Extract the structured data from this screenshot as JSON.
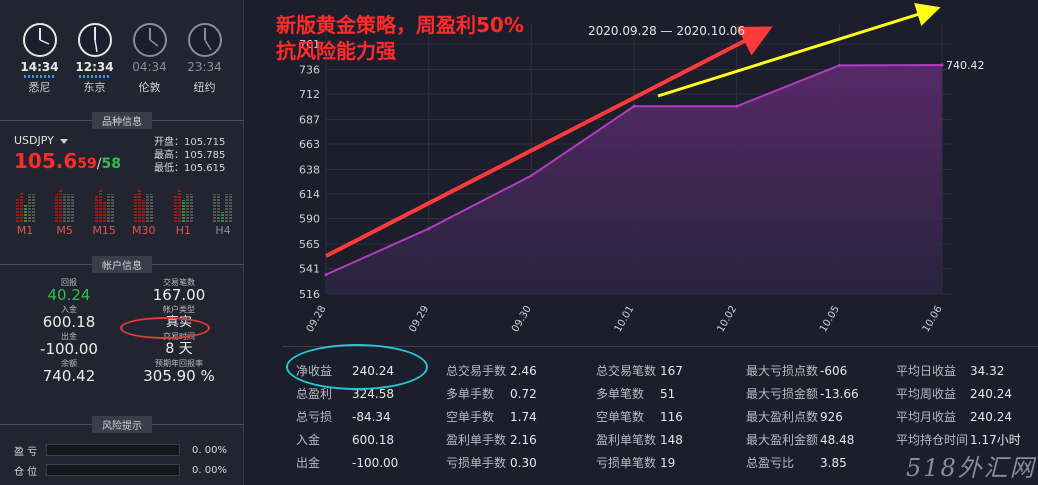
{
  "clocks": [
    {
      "time": "14:34",
      "city": "悉尼",
      "active": true
    },
    {
      "time": "12:34",
      "city": "东京",
      "active": true
    },
    {
      "time": "04:34",
      "city": "伦敦",
      "active": false
    },
    {
      "time": "23:34",
      "city": "纽约",
      "active": false
    }
  ],
  "product": {
    "section_title": "品种信息",
    "symbol": "USDJPY",
    "bid_main": "105.6",
    "bid_small": "59",
    "separator": "/",
    "ask_small": "58",
    "open": "开盘：105.715",
    "high": "最高：105.785",
    "low": "最低：105.615",
    "timeframes": [
      {
        "label": "M1",
        "active": true
      },
      {
        "label": "M5",
        "active": true
      },
      {
        "label": "M15",
        "active": true
      },
      {
        "label": "M30",
        "active": true
      },
      {
        "label": "H1",
        "active": true
      },
      {
        "label": "H4",
        "active": false
      }
    ]
  },
  "account": {
    "section_title": "帐户信息",
    "fields": [
      {
        "label": "回报",
        "value": "40.24",
        "green": true
      },
      {
        "label": "交易笔数",
        "value": "167.00"
      },
      {
        "label": "入金",
        "value": "600.18"
      },
      {
        "label": "帐户类型",
        "value": "真实"
      },
      {
        "label": "出金",
        "value": "-100.00"
      },
      {
        "label": "交易时间",
        "value": "8 天"
      },
      {
        "label": "余额",
        "value": "740.42"
      },
      {
        "label": "预期年回报率",
        "value": "305.90 %"
      }
    ]
  },
  "risk": {
    "section_title": "风险提示",
    "rows": [
      {
        "label": "盈 亏",
        "value": "0. 00%"
      },
      {
        "label": "仓 位",
        "value": "0. 00%"
      }
    ]
  },
  "headline": {
    "line1": "新版黄金策略，周盈利50%",
    "line2": "抗风险能力强"
  },
  "date_range": "2020.09.28 — 2020.10.06",
  "chart_data": {
    "type": "area",
    "categories": [
      "09.28",
      "09.29",
      "09.30",
      "10.01",
      "10.02",
      "10.05",
      "10.06"
    ],
    "values": [
      535,
      580,
      632,
      700,
      700,
      740,
      740.42
    ],
    "yticks": [
      516,
      541,
      565,
      590,
      614,
      638,
      663,
      687,
      712,
      736,
      761
    ],
    "ylim": [
      516,
      761
    ],
    "last_label": "740.42",
    "fill_color": "#5a2a6a",
    "line_color": "#b03cc0",
    "arrow_red": "#ff3a3a",
    "arrow_yellow": "#ffff1a"
  },
  "stats": [
    [
      {
        "k": "净收益",
        "v": "240.24"
      },
      {
        "k": "总盈利",
        "v": "324.58"
      },
      {
        "k": "总亏损",
        "v": "-84.34"
      },
      {
        "k": "入金",
        "v": "600.18"
      },
      {
        "k": "出金",
        "v": "-100.00"
      }
    ],
    [
      {
        "k": "总交易手数",
        "v": "2.46"
      },
      {
        "k": "多单手数",
        "v": "0.72"
      },
      {
        "k": "空单手数",
        "v": "1.74"
      },
      {
        "k": "盈利单手数",
        "v": "2.16"
      },
      {
        "k": "亏损单手数",
        "v": "0.30"
      }
    ],
    [
      {
        "k": "总交易笔数",
        "v": "167"
      },
      {
        "k": "多单笔数",
        "v": "51"
      },
      {
        "k": "空单笔数",
        "v": "116"
      },
      {
        "k": "盈利单笔数",
        "v": "148"
      },
      {
        "k": "亏损单笔数",
        "v": "19"
      }
    ],
    [
      {
        "k": "最大亏损点数",
        "v": "-606"
      },
      {
        "k": "最大亏损金额",
        "v": "-13.66"
      },
      {
        "k": "最大盈利点数",
        "v": "926"
      },
      {
        "k": "最大盈利金额",
        "v": "48.48"
      },
      {
        "k": "总盈亏比",
        "v": "3.85"
      }
    ],
    [
      {
        "k": "平均日收益",
        "v": "34.32"
      },
      {
        "k": "平均周收益",
        "v": "240.24"
      },
      {
        "k": "平均月收益",
        "v": "240.24"
      },
      {
        "k": "平均持仓时间",
        "v": "1.17小时"
      },
      {
        "k": "",
        "v": ""
      }
    ]
  ],
  "watermark": "518外汇网"
}
